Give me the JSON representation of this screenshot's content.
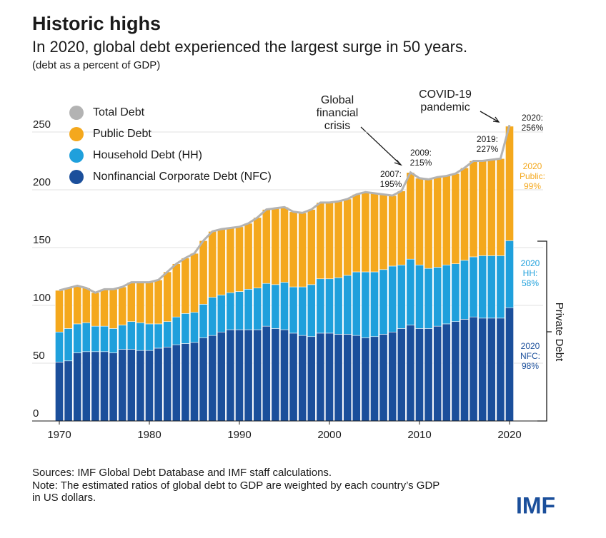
{
  "chart_data": {
    "type": "stacked-bar-line",
    "title": "Historic highs",
    "subtitle": "In 2020, global debt experienced the largest surge in 50 years.",
    "unit_note": "(debt as a percent of GDP)",
    "x": [
      1970,
      1971,
      1972,
      1973,
      1974,
      1975,
      1976,
      1977,
      1978,
      1979,
      1980,
      1981,
      1982,
      1983,
      1984,
      1985,
      1986,
      1987,
      1988,
      1989,
      1990,
      1991,
      1992,
      1993,
      1994,
      1995,
      1996,
      1997,
      1998,
      1999,
      2000,
      2001,
      2002,
      2003,
      2004,
      2005,
      2006,
      2007,
      2008,
      2009,
      2010,
      2011,
      2012,
      2013,
      2014,
      2015,
      2016,
      2017,
      2018,
      2019,
      2020
    ],
    "xlim": [
      1970,
      2020
    ],
    "xticks": [
      1970,
      1980,
      1990,
      2000,
      2010,
      2020
    ],
    "ylim": [
      0,
      250
    ],
    "yticks": [
      0,
      50,
      100,
      150,
      200,
      250
    ],
    "grid": true,
    "series": [
      {
        "name": "Nonfinancial Corporate Debt (NFC)",
        "color": "#1b4f9b",
        "kind": "bar",
        "values": [
          51,
          52,
          59,
          60,
          60,
          60,
          59,
          62,
          62,
          61,
          61,
          63,
          64,
          66,
          67,
          68,
          72,
          74,
          77,
          79,
          79,
          79,
          79,
          82,
          80,
          79,
          76,
          74,
          73,
          76,
          76,
          75,
          75,
          74,
          72,
          73,
          75,
          77,
          80,
          83,
          80,
          80,
          82,
          84,
          86,
          88,
          90,
          89,
          89,
          89,
          98
        ]
      },
      {
        "name": "Household Debt (HH)",
        "color": "#1fa0dc",
        "kind": "bar",
        "values": [
          26,
          28,
          25,
          25,
          22,
          22,
          21,
          21,
          24,
          24,
          23,
          21,
          22,
          24,
          26,
          26,
          29,
          33,
          32,
          32,
          33,
          35,
          36,
          37,
          38,
          41,
          40,
          42,
          45,
          47,
          47,
          49,
          51,
          55,
          57,
          56,
          56,
          57,
          55,
          57,
          55,
          52,
          51,
          51,
          50,
          51,
          52,
          54,
          54,
          54,
          58
        ]
      },
      {
        "name": "Public Debt",
        "color": "#f4a81d",
        "kind": "bar",
        "values": [
          36,
          35,
          33,
          30,
          29,
          32,
          34,
          33,
          34,
          35,
          36,
          38,
          43,
          46,
          48,
          51,
          55,
          57,
          57,
          56,
          56,
          57,
          61,
          64,
          66,
          65,
          65,
          64,
          65,
          66,
          66,
          66,
          66,
          67,
          69,
          68,
          65,
          61,
          64,
          75,
          75,
          77,
          78,
          77,
          78,
          80,
          83,
          82,
          83,
          84,
          99
        ]
      },
      {
        "name": "Total Debt",
        "color": "#b3b3b3",
        "kind": "line",
        "values": [
          113,
          115,
          117,
          115,
          111,
          114,
          114,
          116,
          120,
          120,
          120,
          122,
          129,
          136,
          141,
          145,
          156,
          164,
          166,
          167,
          168,
          171,
          176,
          183,
          184,
          185,
          181,
          180,
          183,
          189,
          189,
          190,
          192,
          196,
          198,
          197,
          196,
          195,
          199,
          215,
          210,
          209,
          211,
          212,
          214,
          219,
          225,
          225,
          226,
          227,
          256
        ]
      }
    ],
    "annotations": [
      {
        "lines": [
          "Global",
          "financial",
          "crisis"
        ]
      },
      {
        "lines": [
          "COVID-19",
          "pandemic"
        ]
      },
      {
        "lines": [
          "2007:",
          "195%"
        ]
      },
      {
        "lines": [
          "2009:",
          "215%"
        ]
      },
      {
        "lines": [
          "2019:",
          "227%"
        ]
      },
      {
        "lines": [
          "2020:",
          "256%"
        ]
      },
      {
        "lines": [
          "2020",
          "Public:",
          "99%"
        ]
      },
      {
        "lines": [
          "2020",
          "HH:",
          "58%"
        ]
      },
      {
        "lines": [
          "2020",
          "NFC:",
          "98%"
        ]
      }
    ],
    "bracket_label": "Private Debt",
    "sources": "Sources: IMF Global Debt Database and IMF staff calculations.",
    "note_lines": [
      "Note: The estimated ratios of global debt to GDP are weighted by each country’s GDP",
      "in US dollars."
    ],
    "logo": "IMF"
  }
}
